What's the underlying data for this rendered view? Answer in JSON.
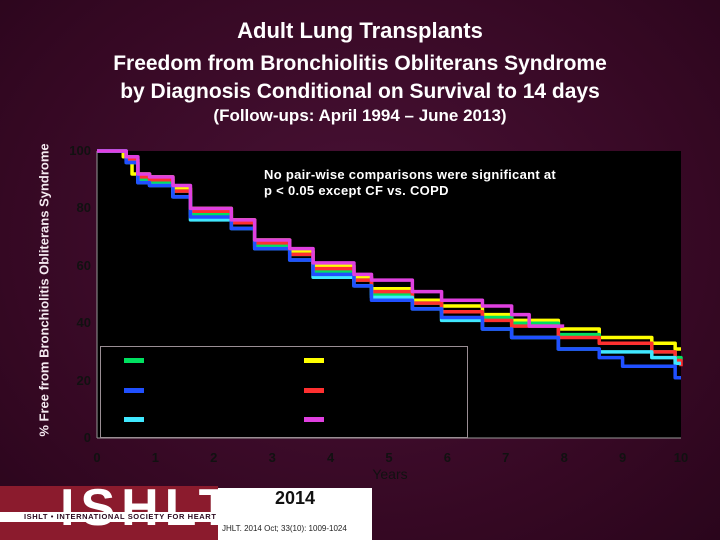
{
  "header": {
    "title": "Adult Lung Transplants",
    "subtitle_line1": "Freedom from Bronchiolitis Obliterans Syndrome",
    "subtitle_line2": "by Diagnosis Conditional on Survival to 14 days",
    "followup": "(Follow-ups: April 1994 – June 2013)"
  },
  "annotation": {
    "line1": "No pair-wise comparisons were significant at",
    "line2": "p < 0.05 except CF vs. COPD"
  },
  "footer": {
    "logo": "ISHLT",
    "society": "ISHLT • INTERNATIONAL SOCIETY FOR HEART AND LUNG TRANSPLANTATION",
    "year": "2014",
    "citation": "JHLT. 2014 Oct; 33(10): 1009-1024"
  },
  "chart_data": {
    "type": "line",
    "title": "",
    "xlabel": "Years",
    "ylabel": "% Free from Bronchiolitis Obliterans Syndrome",
    "xlim": [
      0,
      10
    ],
    "ylim": [
      0,
      100
    ],
    "xticks": [
      "0",
      "1",
      "2",
      "3",
      "4",
      "5",
      "6",
      "7",
      "8",
      "9",
      "10"
    ],
    "yticks": [
      "0",
      "20",
      "40",
      "60",
      "80",
      "100"
    ],
    "grid": false,
    "legend_placement": "bottom-left (inside plot, labels not legible)",
    "series": [
      {
        "color": "#ffff00",
        "x": [
          0,
          0.45,
          0.6,
          0.9,
          1.3,
          1.6,
          2.3,
          2.7,
          3.3,
          3.7,
          4.4,
          4.7,
          5.4,
          5.9,
          6.6,
          7.1,
          7.9,
          8.6,
          9.5,
          9.9,
          10
        ],
        "y": [
          100,
          98,
          92,
          91,
          87,
          80,
          76,
          69,
          65,
          60,
          56,
          52,
          48,
          46,
          43,
          41,
          38,
          35,
          33,
          31,
          31
        ]
      },
      {
        "color": "#00e060",
        "x": [
          0,
          0.5,
          0.7,
          0.9,
          1.3,
          1.6,
          2.3,
          2.7,
          3.3,
          3.7,
          4.4,
          4.7,
          5.4,
          5.9,
          6.6,
          7.1,
          7.9,
          8.6,
          9.5,
          9.9,
          10
        ],
        "y": [
          100,
          97,
          90,
          89,
          86,
          78,
          75,
          67,
          64,
          58,
          55,
          50,
          47,
          44,
          42,
          40,
          36,
          33,
          30,
          28,
          27
        ]
      },
      {
        "color": "#ff3030",
        "x": [
          0,
          0.5,
          0.7,
          0.9,
          1.3,
          1.6,
          2.3,
          2.7,
          3.3,
          3.7,
          4.4,
          4.7,
          5.4,
          5.9,
          6.6,
          7.1,
          7.9,
          8.6,
          9.5,
          9.9,
          10
        ],
        "y": [
          100,
          97,
          91,
          90,
          86,
          79,
          75,
          68,
          64,
          59,
          55,
          51,
          47,
          44,
          41,
          39,
          35,
          33,
          30,
          27,
          25
        ]
      },
      {
        "color": "#40e8ff",
        "x": [
          0,
          0.5,
          0.7,
          0.9,
          1.3,
          1.6,
          2.3,
          2.7,
          3.3,
          3.7,
          4.4,
          4.7,
          5.4,
          5.9,
          6.6,
          7.1,
          7.9,
          8.6,
          9.5,
          9.9,
          10
        ],
        "y": [
          100,
          96,
          89,
          88,
          84,
          76,
          73,
          66,
          62,
          56,
          53,
          49,
          45,
          41,
          38,
          35,
          31,
          30,
          28,
          26,
          26
        ]
      },
      {
        "color": "#2050ff",
        "x": [
          0,
          0.5,
          0.7,
          0.9,
          1.3,
          1.6,
          2.3,
          2.7,
          3.3,
          3.7,
          4.4,
          4.7,
          5.4,
          5.9,
          6.6,
          7.1,
          7.9,
          8.6,
          9.0,
          9.9,
          10
        ],
        "y": [
          100,
          96,
          89,
          88,
          84,
          77,
          73,
          66,
          62,
          57,
          53,
          48,
          45,
          42,
          38,
          35,
          31,
          28,
          25,
          21,
          21
        ]
      },
      {
        "color": "#e040e0",
        "x": [
          0,
          0.5,
          0.7,
          0.9,
          1.3,
          1.6,
          2.3,
          2.7,
          3.3,
          3.7,
          4.4,
          4.7,
          5.4,
          5.9,
          6.6,
          7.1,
          7.4,
          7.9,
          8.0
        ],
        "y": [
          100,
          98,
          92,
          91,
          88,
          80,
          76,
          69,
          66,
          61,
          57,
          55,
          51,
          48,
          46,
          43,
          39,
          39,
          39
        ]
      }
    ]
  }
}
